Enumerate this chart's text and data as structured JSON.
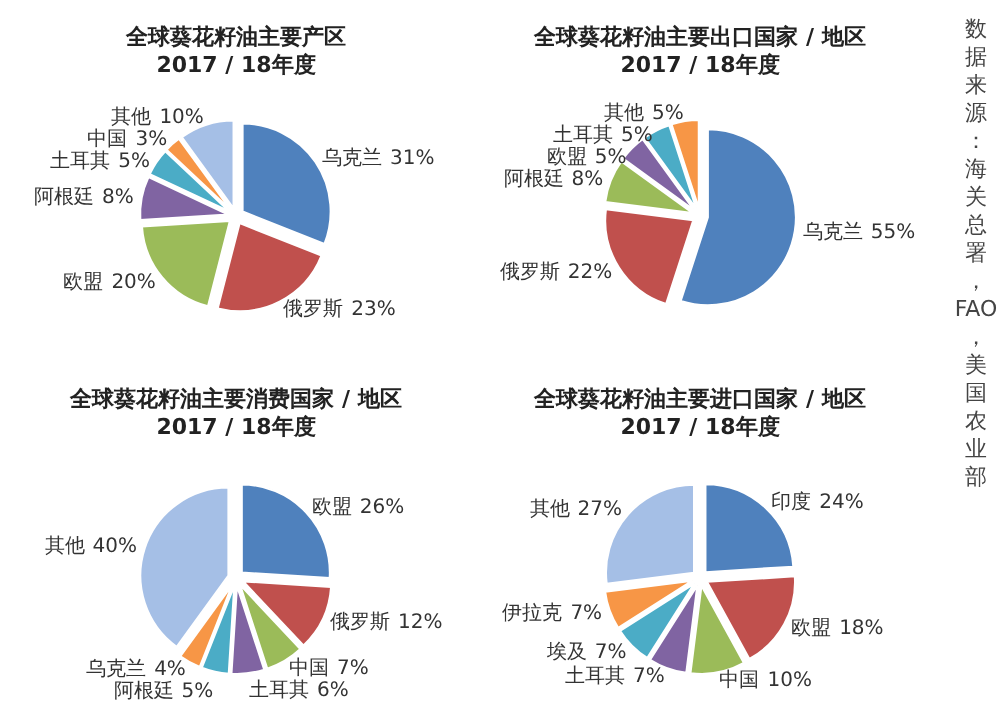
{
  "chart_data": [
    {
      "type": "pie",
      "title": "全球葵花籽油主要产区",
      "subtitle": "2017 / 18年度",
      "categories": [
        "乌克兰",
        "俄罗斯",
        "欧盟",
        "阿根廷",
        "土耳其",
        "中国",
        "其他"
      ],
      "values": [
        31,
        23,
        20,
        8,
        5,
        3,
        10
      ],
      "colors": [
        "#4f81bd",
        "#c0504d",
        "#9bbb59",
        "#8064a2",
        "#4bacc6",
        "#f79646",
        "#a5bfe6"
      ],
      "value_labels": [
        "31%",
        "23%",
        "20%",
        "8%",
        "5%",
        "3%",
        "10%"
      ]
    },
    {
      "type": "pie",
      "title": "全球葵花籽油主要出口国家 / 地区",
      "subtitle": "2017 / 18年度",
      "categories": [
        "乌克兰",
        "俄罗斯",
        "阿根廷",
        "欧盟",
        "土耳其",
        "其他"
      ],
      "values": [
        55,
        22,
        8,
        5,
        5,
        5
      ],
      "colors": [
        "#4f81bd",
        "#c0504d",
        "#9bbb59",
        "#8064a2",
        "#4bacc6",
        "#f79646"
      ],
      "value_labels": [
        "55%",
        "22%",
        "8%",
        "5%",
        "5%",
        "5%"
      ],
      "annotations": [
        "数据来源：海关总署，FAO，美国农业部"
      ]
    },
    {
      "type": "pie",
      "title": "全球葵花籽油主要消费国家 / 地区",
      "subtitle": "2017 / 18年度",
      "categories": [
        "欧盟",
        "俄罗斯",
        "中国",
        "土耳其",
        "阿根廷",
        "乌克兰",
        "其他"
      ],
      "values": [
        26,
        12,
        7,
        6,
        5,
        4,
        40
      ],
      "colors": [
        "#4f81bd",
        "#c0504d",
        "#9bbb59",
        "#8064a2",
        "#4bacc6",
        "#f79646",
        "#a5bfe6"
      ],
      "value_labels": [
        "26%",
        "12%",
        "7%",
        "6%",
        "5%",
        "4%",
        "40%"
      ]
    },
    {
      "type": "pie",
      "title": "全球葵花籽油主要进口国家 / 地区",
      "subtitle": "2017 / 18年度",
      "categories": [
        "印度",
        "欧盟",
        "中国",
        "土耳其",
        "埃及",
        "伊拉克",
        "其他"
      ],
      "values": [
        24,
        18,
        10,
        7,
        7,
        7,
        27
      ],
      "colors": [
        "#4f81bd",
        "#c0504d",
        "#9bbb59",
        "#8064a2",
        "#4bacc6",
        "#f79646",
        "#a5bfe6"
      ],
      "value_labels": [
        "24%",
        "18%",
        "10%",
        "7%",
        "7%",
        "7%",
        "27%"
      ]
    }
  ]
}
